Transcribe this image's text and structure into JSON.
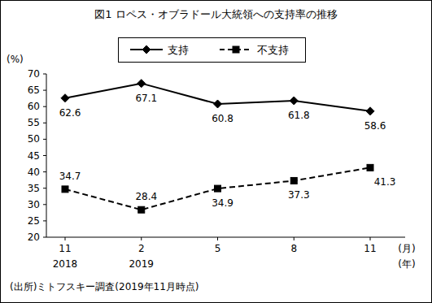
{
  "chart_data": {
    "type": "line",
    "title": "図1 ロペス・オブラドール大統領への支持率の推移",
    "y_label": "(%)",
    "x_label": "(月)",
    "year_label": "(年)",
    "source": "(出所)ミトフスキー調査(2019年11月時点)",
    "categories": [
      "11",
      "2",
      "5",
      "8",
      "11"
    ],
    "category_years": [
      "2018",
      "2019",
      null,
      null,
      null
    ],
    "series": [
      {
        "name": "支持",
        "color": "#000000",
        "marker": "diamond",
        "line_style": "solid",
        "values": [
          62.6,
          67.1,
          60.8,
          61.8,
          58.6
        ]
      },
      {
        "name": "不支持",
        "color": "#000000",
        "marker": "square",
        "line_style": "dashed",
        "values": [
          34.7,
          28.4,
          34.9,
          37.3,
          41.3
        ]
      }
    ],
    "ylim": [
      20,
      70
    ],
    "yticks": [
      20,
      25,
      30,
      35,
      40,
      45,
      50,
      55,
      60,
      65,
      70
    ],
    "grid": false,
    "legend": "top",
    "data_labels": true
  }
}
